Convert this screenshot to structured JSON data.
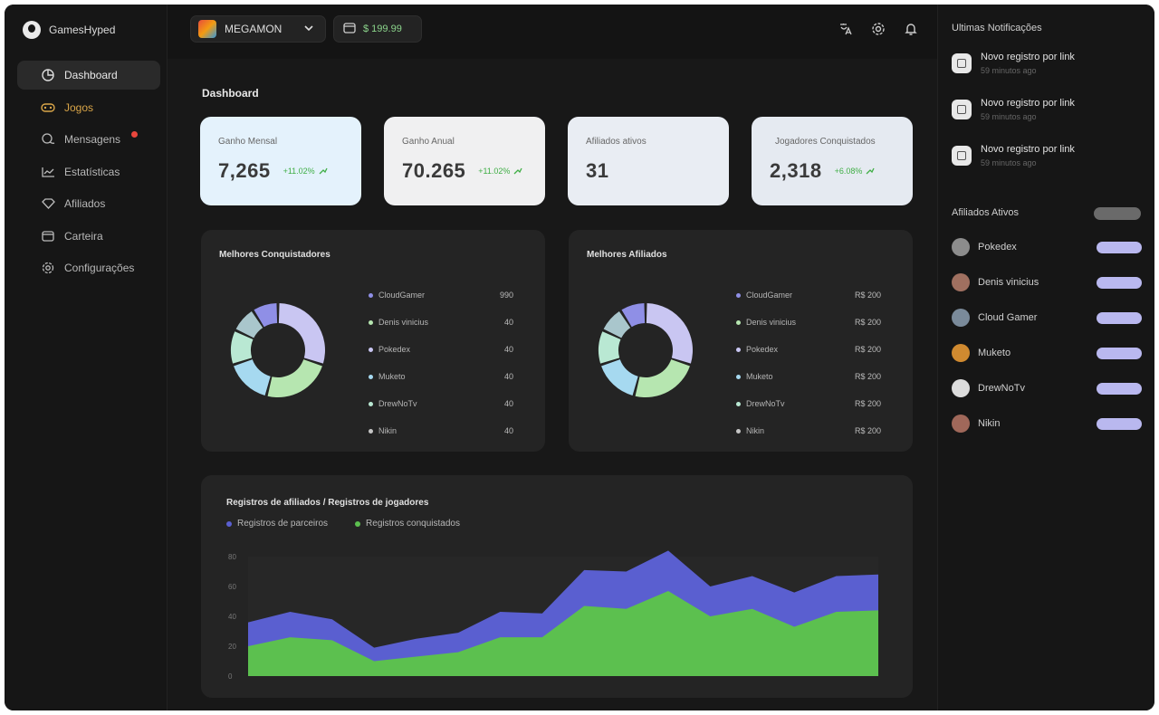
{
  "app": {
    "name": "GamesHyped"
  },
  "sidebar": {
    "items": [
      {
        "label": "Dashboard"
      },
      {
        "label": "Jogos"
      },
      {
        "label": "Mensagens"
      },
      {
        "label": "Estatísticas"
      },
      {
        "label": "Afiliados"
      },
      {
        "label": "Carteira"
      },
      {
        "label": "Configurações"
      }
    ]
  },
  "topbar": {
    "game": "MEGAMON",
    "balance": "$ 199.99"
  },
  "page": {
    "title": "Dashboard"
  },
  "stats": [
    {
      "label": "Ganho Mensal",
      "value": "7,265",
      "change": "+11.02%"
    },
    {
      "label": "Ganho Anual",
      "value": "70.265",
      "change": "+11.02%"
    },
    {
      "label": "Afiliados ativos",
      "value": "31",
      "change": ""
    },
    {
      "label": "Jogadores Conquistados",
      "value": "2,318",
      "change": "+6.08%"
    }
  ],
  "best_conquerors": {
    "title": "Melhores Conquistadores",
    "slices": [
      {
        "name": "CloudGamer",
        "value": "990",
        "color": "#c9c6f2"
      },
      {
        "name": "Denis vinicius",
        "value": "40",
        "color": "#b6e6b0"
      },
      {
        "name": "Pokedex",
        "value": "40",
        "color": "#a6d9f0"
      },
      {
        "name": "Muketo",
        "value": "40",
        "color": "#b9e8d3"
      },
      {
        "name": "DrewNoTv",
        "value": "40",
        "color": "#a9c6cc"
      },
      {
        "name": "Nikin",
        "value": "40",
        "color": "#8f8fe6"
      }
    ]
  },
  "best_affiliates": {
    "title": "Melhores Afiliados",
    "slices": [
      {
        "name": "CloudGamer",
        "value": "R$ 200",
        "color": "#c9c6f2"
      },
      {
        "name": "Denis vinicius",
        "value": "R$ 200",
        "color": "#b6e6b0"
      },
      {
        "name": "Pokedex",
        "value": "R$ 200",
        "color": "#a6d9f0"
      },
      {
        "name": "Muketo",
        "value": "R$ 200",
        "color": "#b9e8d3"
      },
      {
        "name": "DrewNoTv",
        "value": "R$ 200",
        "color": "#a9c6cc"
      },
      {
        "name": "Nikin",
        "value": "R$ 200",
        "color": "#8f8fe6"
      }
    ]
  },
  "chart": {
    "title": "Registros de afiliados / Registros de jogadores",
    "legend": [
      {
        "label": "Registros de parceiros",
        "color": "#5a5fd0"
      },
      {
        "label": "Registros conquistados",
        "color": "#5cc04f"
      }
    ]
  },
  "chart_data": {
    "type": "area",
    "title": "Registros de afiliados / Registros de jogadores",
    "ylim": [
      0,
      80
    ],
    "yticks": [
      "80",
      "60",
      "40",
      "20",
      "0"
    ],
    "series": [
      {
        "name": "Registros de parceiros",
        "values": [
          36,
          43,
          38,
          19,
          25,
          29,
          43,
          42,
          71,
          70,
          84,
          60,
          67,
          56,
          67,
          68
        ]
      },
      {
        "name": "Registros conquistados",
        "values": [
          20,
          26,
          24,
          10,
          13,
          16,
          26,
          26,
          47,
          45,
          57,
          40,
          45,
          33,
          43,
          44
        ]
      }
    ],
    "grid": false,
    "legend_position": "top-left"
  },
  "notifications": {
    "title": "Ultimas Notificações",
    "items": [
      {
        "title": "Novo registro por link",
        "time": "59 minutos ago"
      },
      {
        "title": "Novo registro por link",
        "time": "59 minutos ago"
      },
      {
        "title": "Novo registro por link",
        "time": "59 minutos ago"
      }
    ]
  },
  "active_affiliates": {
    "title": "Afiliados Ativos",
    "items": [
      {
        "name": "Pokedex",
        "color": "#8c8c8c"
      },
      {
        "name": "Denis vinicius",
        "color": "#a07060"
      },
      {
        "name": "Cloud Gamer",
        "color": "#7a8a9a"
      },
      {
        "name": "Muketo",
        "color": "#d08a30"
      },
      {
        "name": "DrewNoTv",
        "color": "#dcdcdc"
      },
      {
        "name": "Nikin",
        "color": "#a0685a"
      }
    ]
  }
}
